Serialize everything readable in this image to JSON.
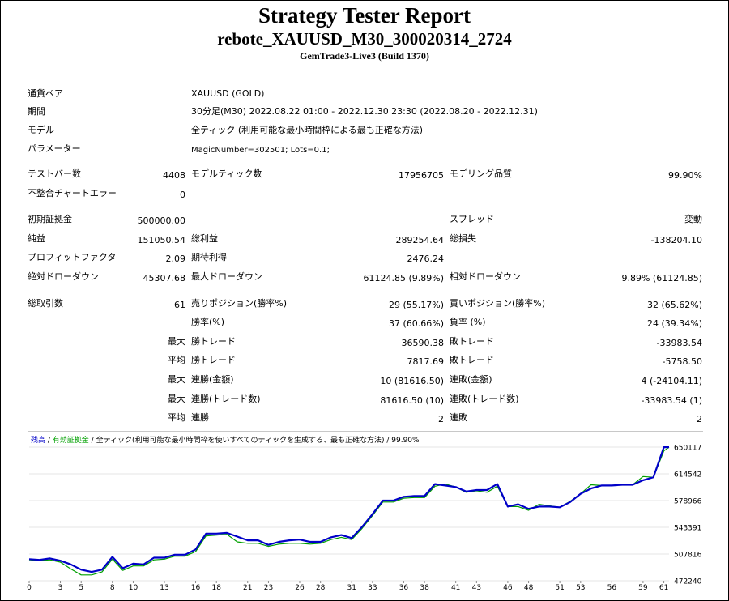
{
  "report": {
    "title": "Strategy Tester Report",
    "name": "rebote_XAUUSD_M30_300020314_2724",
    "server": "GemTrade3-Live3 (Build 1370)"
  },
  "settings": {
    "symbol_label": "通貨ペア",
    "symbol": "XAUUSD (GOLD)",
    "period_label": "期間",
    "period": "30分足(M30) 2022.08.22 01:00 - 2022.12.30 23:30 (2022.08.20 - 2022.12.31)",
    "model_label": "モデル",
    "model": "全ティック (利用可能な最小時間枠による最も正確な方法)",
    "params_label": "パラメーター",
    "params": "MagicNumber=302501; Lots=0.1;"
  },
  "bars": {
    "bars_label": "テストバー数",
    "bars": "4408",
    "ticks_label": "モデルティック数",
    "ticks": "17956705",
    "quality_label": "モデリング品質",
    "quality": "99.90%",
    "errors_label": "不整合チャートエラー",
    "errors": "0"
  },
  "results": {
    "deposit_label": "初期証拠金",
    "deposit": "500000.00",
    "spread_label": "スプレッド",
    "spread": "変動",
    "net_label": "純益",
    "net": "151050.54",
    "gross_profit_label": "総利益",
    "gross_profit": "289254.64",
    "gross_loss_label": "総損失",
    "gross_loss": "-138204.10",
    "pf_label": "プロフィットファクタ",
    "pf": "2.09",
    "expected_label": "期待利得",
    "expected": "2476.24",
    "abs_dd_label": "絶対ドローダウン",
    "abs_dd": "45307.68",
    "max_dd_label": "最大ドローダウン",
    "max_dd": "61124.85 (9.89%)",
    "rel_dd_label": "相対ドローダウン",
    "rel_dd": "9.89% (61124.85)"
  },
  "trades": {
    "total_label": "総取引数",
    "total": "61",
    "short_label": "売りポジション(勝率%)",
    "short": "29 (55.17%)",
    "long_label": "買いポジション(勝率%)",
    "long": "32 (65.62%)",
    "win_label": "勝率(%)",
    "win": "37 (60.66%)",
    "loss_label": "負率 (%)",
    "loss": "24 (39.34%)",
    "largest": "最大",
    "average": "平均",
    "maximum": "最大",
    "maximal": "最大",
    "avg2": "平均",
    "lp_label": "勝トレード",
    "lp": "36590.38",
    "ll_label": "敗トレード",
    "ll": "-33983.54",
    "ap_label": "勝トレード",
    "ap": "7817.69",
    "al_label": "敗トレード",
    "al": "-5758.50",
    "cw_label": "連勝(金額)",
    "cw": "10 (81616.50)",
    "cl_label": "連敗(金額)",
    "cl": "4 (-24104.11)",
    "cwp_label": "連勝(トレード数)",
    "cwp": "81616.50 (10)",
    "clp_label": "連敗(トレード数)",
    "clp": "-33983.54 (1)",
    "acw_label": "連勝",
    "acw": "2",
    "acl_label": "連敗",
    "acl": "2"
  },
  "chart_legend": {
    "balance": "残高",
    "sep1": " / ",
    "equity": "有効証拠金",
    "sep2": " / ",
    "desc": "全ティック(利用可能な最小時間枠を使いすべてのティックを生成する、最も正確な方法) / 99.90%"
  },
  "chart_data": {
    "type": "line",
    "x_ticks": [
      "0",
      "3",
      "5",
      "8",
      "10",
      "13",
      "16",
      "18",
      "21",
      "23",
      "26",
      "28",
      "31",
      "33",
      "36",
      "38",
      "41",
      "43",
      "46",
      "48",
      "51",
      "53",
      "56",
      "59",
      "61"
    ],
    "y_ticks": [
      "472240",
      "507816",
      "543391",
      "578966",
      "614542",
      "650117"
    ],
    "ylim": [
      472240,
      650117
    ],
    "xlim": [
      0,
      61.5
    ],
    "series": [
      {
        "name": "残高",
        "color": "#0000c8",
        "x": [
          0,
          1,
          2,
          3,
          4,
          5,
          6,
          7,
          8,
          9,
          10,
          11,
          12,
          13,
          14,
          15,
          16,
          17,
          18,
          19,
          20,
          21,
          22,
          23,
          24,
          25,
          26,
          27,
          28,
          29,
          30,
          31,
          32,
          33,
          34,
          35,
          36,
          37,
          38,
          39,
          40,
          41,
          42,
          43,
          44,
          45,
          46,
          47,
          48,
          49,
          50,
          51,
          52,
          53,
          54,
          55,
          56,
          57,
          58,
          59,
          60,
          61,
          61.5
        ],
        "y": [
          501000,
          500000,
          502000,
          499000,
          494000,
          487000,
          484000,
          487000,
          504000,
          489000,
          495000,
          494000,
          503000,
          503000,
          507000,
          507000,
          514000,
          535000,
          535000,
          536000,
          531000,
          526000,
          526000,
          520000,
          524000,
          526000,
          527000,
          524000,
          524000,
          530000,
          533000,
          529000,
          544000,
          561000,
          579000,
          579000,
          584000,
          585000,
          585000,
          601000,
          599000,
          597000,
          591000,
          593000,
          593000,
          601000,
          571000,
          574000,
          568000,
          571000,
          571000,
          570000,
          577000,
          588000,
          595000,
          599000,
          599000,
          600000,
          600000,
          606000,
          610000,
          650000,
          650000
        ]
      },
      {
        "name": "有効証拠金",
        "color": "#00a000",
        "x": [
          0,
          1,
          2,
          3,
          4,
          5,
          6,
          7,
          8,
          9,
          10,
          11,
          12,
          13,
          14,
          15,
          16,
          17,
          18,
          19,
          20,
          21,
          22,
          23,
          24,
          25,
          26,
          27,
          28,
          29,
          30,
          31,
          32,
          33,
          34,
          35,
          36,
          37,
          38,
          39,
          40,
          41,
          42,
          43,
          44,
          45,
          46,
          47,
          48,
          49,
          50,
          51,
          52,
          53,
          54,
          55,
          56,
          57,
          58,
          59,
          60,
          61,
          61.5
        ],
        "y": [
          500000,
          499000,
          500000,
          497000,
          488000,
          480000,
          480000,
          484000,
          501000,
          486000,
          492000,
          492000,
          500000,
          501000,
          505000,
          505000,
          511000,
          532000,
          533000,
          534000,
          524000,
          522000,
          522000,
          518000,
          521000,
          522000,
          522000,
          521000,
          522000,
          527000,
          530000,
          527000,
          542000,
          559000,
          577000,
          577000,
          582000,
          583000,
          583000,
          598000,
          601000,
          597000,
          590000,
          592000,
          590000,
          598000,
          571000,
          571000,
          566000,
          574000,
          572000,
          570000,
          578000,
          588000,
          600000,
          599000,
          599000,
          600000,
          600000,
          611000,
          610000,
          645000,
          650000
        ]
      }
    ]
  }
}
